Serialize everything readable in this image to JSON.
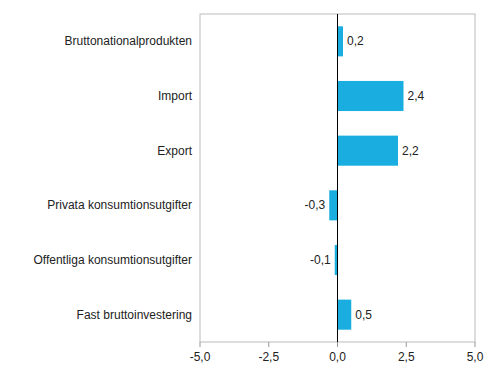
{
  "chart_data": {
    "type": "bar",
    "orientation": "horizontal",
    "categories": [
      "Fast bruttoinvestering",
      "Offentliga konsumtionsutgifter",
      "Privata konsumtionsutgifter",
      "Export",
      "Import",
      "Bruttonationalprodukten"
    ],
    "values": [
      0.5,
      -0.1,
      -0.3,
      2.2,
      2.4,
      0.2
    ],
    "value_labels": [
      "0,5",
      "-0,1",
      "-0,3",
      "2,2",
      "2,4",
      "0,2"
    ],
    "data_labels": true,
    "color": "#1aaee0",
    "xlim": [
      -5.0,
      5.0
    ],
    "xticks": [
      {
        "value": -5.0,
        "label": "-5,0"
      },
      {
        "value": -2.5,
        "label": "-2,5"
      },
      {
        "value": 0.0,
        "label": "0,0"
      },
      {
        "value": 2.5,
        "label": "2,5"
      },
      {
        "value": 5.0,
        "label": "5,0"
      }
    ],
    "grid": false
  }
}
